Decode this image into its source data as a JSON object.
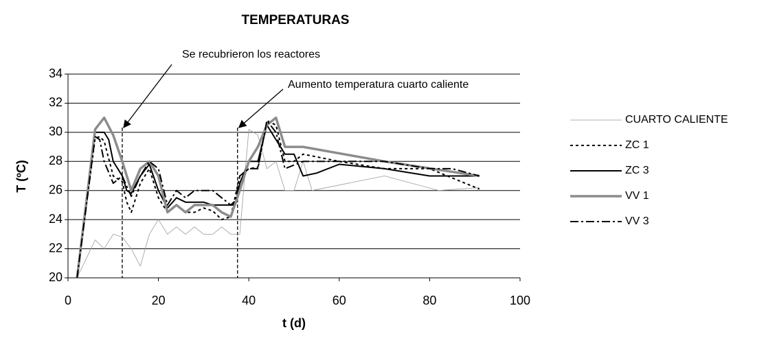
{
  "chart_data": {
    "type": "line",
    "title": "TEMPERATURAS",
    "x_label": "t (d)",
    "y_label": "T (ºC)",
    "xlim": [
      0,
      100
    ],
    "xticks": [
      0,
      20,
      40,
      60,
      80,
      100
    ],
    "ylim": [
      20,
      34
    ],
    "yticks": [
      20,
      22,
      24,
      26,
      28,
      30,
      32,
      34
    ],
    "grid": true,
    "legend": "right",
    "annotations": [
      {
        "text": "Se recubrieron los reactores",
        "x": 12
      },
      {
        "text": "Aumento temperatura cuarto caliente",
        "x": 37.5
      }
    ],
    "series": [
      {
        "name": "CUARTO CALIENTE",
        "color": "#9a9a9a",
        "width": 0.8,
        "dash": "none",
        "x": [
          2,
          6,
          8,
          10,
          12,
          14,
          16,
          18,
          20,
          22,
          24,
          26,
          28,
          30,
          32,
          34,
          36,
          38,
          40,
          42,
          44,
          46,
          48,
          50,
          52,
          54,
          70,
          82,
          91
        ],
        "values": [
          20,
          22.6,
          22,
          23,
          22.8,
          22,
          20.8,
          23,
          24,
          23,
          23.5,
          23,
          23.5,
          23,
          23,
          23.5,
          23,
          23,
          30.2,
          29.8,
          27.5,
          28,
          26,
          26,
          28,
          26,
          27,
          26,
          26.2
        ]
      },
      {
        "name": "ZC 1",
        "color": "#000000",
        "width": 2,
        "dash": "4 4",
        "x": [
          2,
          6,
          7,
          8,
          10,
          12,
          13,
          14,
          15,
          16,
          18,
          20,
          22,
          24,
          26,
          28,
          30,
          32,
          34,
          36,
          38,
          40,
          42,
          44,
          46,
          48,
          50,
          52,
          60,
          70,
          80,
          91
        ],
        "values": [
          20,
          29.6,
          29.7,
          29.4,
          27,
          26.6,
          25.2,
          24.5,
          25.5,
          26.5,
          27.5,
          25.5,
          24.5,
          25,
          24.5,
          24.5,
          24.8,
          24.6,
          24,
          24.2,
          27,
          27.5,
          27.6,
          30.8,
          30.5,
          28,
          28,
          28.5,
          28,
          27.5,
          27.5,
          26.1
        ]
      },
      {
        "name": "ZC 3",
        "color": "#000000",
        "width": 2,
        "dash": "none",
        "x": [
          2,
          6,
          8,
          9,
          10,
          12,
          13,
          14,
          16,
          18,
          20,
          22,
          24,
          26,
          28,
          30,
          32,
          34,
          37,
          38,
          40,
          42,
          44,
          46,
          48,
          50,
          52,
          55,
          60,
          70,
          80,
          91
        ],
        "values": [
          20,
          30,
          30,
          29.5,
          28,
          27,
          26,
          25.8,
          27,
          27.8,
          26,
          24.8,
          25.5,
          25.2,
          25.2,
          25.2,
          25,
          25,
          25,
          26.5,
          28,
          28,
          30.5,
          29.5,
          28.5,
          28.5,
          27,
          27.2,
          27.8,
          27.5,
          27,
          27
        ]
      },
      {
        "name": "VV 1",
        "color": "#8c8c8c",
        "width": 3.5,
        "dash": "none",
        "x": [
          2,
          6,
          8,
          10,
          12,
          14,
          16,
          18,
          20,
          22,
          24,
          26,
          28,
          30,
          32,
          34,
          36,
          38,
          40,
          42,
          44,
          46,
          48,
          52,
          70,
          91
        ],
        "values": [
          20,
          30.2,
          31,
          29.8,
          28,
          26,
          27.5,
          28,
          27,
          24.5,
          25,
          24.5,
          25,
          25,
          25,
          24.5,
          24.2,
          26,
          28,
          29,
          30.5,
          31,
          29,
          29,
          28,
          27
        ]
      },
      {
        "name": "VV 3",
        "color": "#000000",
        "width": 2,
        "dash": "12 4 3 4",
        "x": [
          2,
          6,
          7,
          8,
          10,
          12,
          13,
          14,
          16,
          18,
          20,
          22,
          24,
          26,
          28,
          30,
          32,
          34,
          36,
          37,
          38,
          40,
          42,
          44,
          46,
          48,
          52,
          70,
          80,
          85,
          91
        ],
        "values": [
          20,
          29.7,
          29.5,
          28,
          26.5,
          27,
          26.3,
          25.6,
          27,
          28,
          27.5,
          25,
          26,
          25.5,
          26,
          26,
          26,
          25.5,
          25,
          25.3,
          27,
          27.5,
          27.5,
          30.8,
          30,
          27.5,
          28,
          28,
          27.5,
          27.5,
          27
        ]
      }
    ]
  }
}
